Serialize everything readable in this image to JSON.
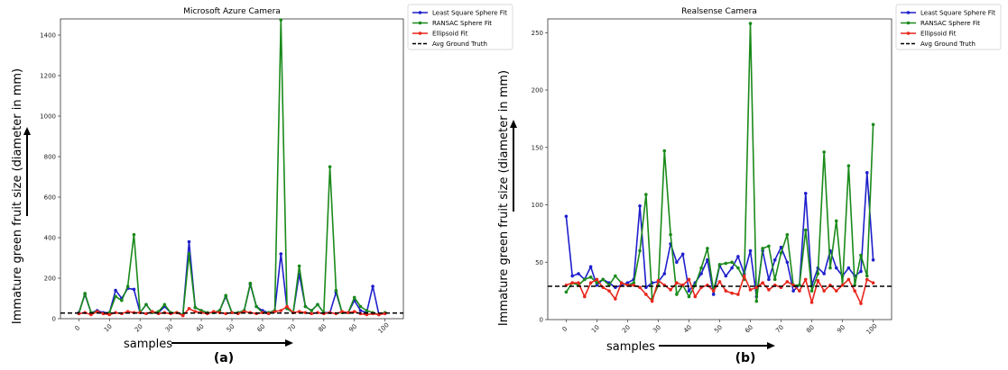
{
  "figure": {
    "ylabel": "Immature green fruit size (diameter in mm)",
    "xlabel": "samples",
    "colors": {
      "least_square": "#1f1fcc",
      "ransac": "#1a8a1a",
      "ellipsoid": "#e8261d",
      "ground_truth": "#000000"
    }
  },
  "chart_data": [
    {
      "type": "line",
      "title": "Microsoft Azure Camera",
      "panel_label": "(a)",
      "xlim": [
        -6,
        106
      ],
      "ylim": [
        0,
        1480
      ],
      "xticks": [
        0,
        10,
        20,
        30,
        40,
        50,
        60,
        70,
        80,
        90,
        100
      ],
      "yticks": [
        0,
        200,
        400,
        600,
        800,
        1000,
        1200,
        1400
      ],
      "legend_position": "outside-top-right",
      "x": [
        0,
        2,
        4,
        6,
        8,
        10,
        12,
        14,
        16,
        18,
        20,
        22,
        24,
        26,
        28,
        30,
        32,
        34,
        36,
        38,
        40,
        42,
        44,
        46,
        48,
        50,
        52,
        54,
        56,
        58,
        60,
        62,
        64,
        66,
        68,
        70,
        72,
        74,
        76,
        78,
        80,
        82,
        84,
        86,
        88,
        90,
        92,
        94,
        96,
        98,
        100
      ],
      "series": [
        {
          "name": "Least Square Sphere Fit",
          "style": "solid",
          "marker": true,
          "color_key": "least_square",
          "values": [
            30,
            120,
            30,
            40,
            30,
            30,
            140,
            100,
            150,
            145,
            30,
            70,
            30,
            30,
            60,
            30,
            30,
            20,
            380,
            55,
            40,
            30,
            30,
            40,
            110,
            30,
            30,
            40,
            170,
            60,
            40,
            30,
            40,
            320,
            50,
            30,
            220,
            60,
            40,
            70,
            30,
            30,
            130,
            30,
            30,
            90,
            40,
            30,
            160,
            20,
            30
          ]
        },
        {
          "name": "RANSAC Sphere Fit",
          "style": "solid",
          "marker": true,
          "color_key": "ransac",
          "values": [
            25,
            125,
            30,
            35,
            25,
            30,
            110,
            90,
            160,
            415,
            30,
            70,
            30,
            35,
            70,
            30,
            30,
            20,
            320,
            55,
            40,
            30,
            30,
            40,
            115,
            30,
            30,
            40,
            175,
            60,
            30,
            30,
            40,
            1475,
            50,
            30,
            260,
            60,
            40,
            70,
            30,
            750,
            140,
            30,
            30,
            105,
            60,
            40,
            30,
            20,
            30
          ]
        },
        {
          "name": "Ellipsoid Fit",
          "style": "solid",
          "marker": true,
          "color_key": "ellipsoid",
          "values": [
            25,
            30,
            20,
            35,
            25,
            20,
            30,
            25,
            35,
            30,
            30,
            25,
            35,
            25,
            30,
            25,
            30,
            15,
            50,
            35,
            30,
            25,
            35,
            30,
            25,
            30,
            25,
            35,
            30,
            25,
            30,
            25,
            35,
            40,
            60,
            30,
            35,
            30,
            25,
            30,
            25,
            30,
            25,
            35,
            30,
            35,
            25,
            20,
            25,
            20,
            25
          ]
        },
        {
          "name": "Avg Ground Truth",
          "style": "dashed",
          "marker": false,
          "color_key": "ground_truth",
          "constant": 28
        }
      ]
    },
    {
      "type": "line",
      "title": "Realsense Camera",
      "panel_label": "(b)",
      "xlim": [
        -6,
        106
      ],
      "ylim": [
        0,
        262
      ],
      "xticks": [
        0,
        10,
        20,
        30,
        40,
        50,
        60,
        70,
        80,
        90,
        100
      ],
      "yticks": [
        0,
        50,
        100,
        150,
        200,
        250
      ],
      "legend_position": "outside-top-right",
      "x": [
        0,
        2,
        4,
        6,
        8,
        10,
        12,
        14,
        16,
        18,
        20,
        22,
        24,
        26,
        28,
        30,
        32,
        34,
        36,
        38,
        40,
        42,
        44,
        46,
        48,
        50,
        52,
        54,
        56,
        58,
        60,
        62,
        64,
        66,
        68,
        70,
        72,
        74,
        76,
        78,
        80,
        82,
        84,
        86,
        88,
        90,
        92,
        94,
        96,
        98,
        100
      ],
      "series": [
        {
          "name": "Least Square Sphere Fit",
          "style": "solid",
          "marker": true,
          "color_key": "least_square",
          "values": [
            90,
            38,
            40,
            35,
            46,
            30,
            35,
            32,
            28,
            30,
            32,
            35,
            99,
            28,
            32,
            33,
            40,
            66,
            50,
            57,
            25,
            32,
            40,
            52,
            22,
            47,
            38,
            45,
            55,
            40,
            60,
            20,
            60,
            35,
            52,
            63,
            50,
            25,
            30,
            110,
            30,
            45,
            40,
            60,
            45,
            38,
            45,
            38,
            42,
            128,
            52
          ]
        },
        {
          "name": "RANSAC Sphere Fit",
          "style": "solid",
          "marker": true,
          "color_key": "ransac",
          "values": [
            24,
            32,
            30,
            35,
            37,
            32,
            35,
            30,
            38,
            32,
            30,
            32,
            60,
            109,
            18,
            30,
            147,
            74,
            22,
            30,
            20,
            30,
            45,
            62,
            25,
            48,
            49,
            50,
            45,
            35,
            258,
            16,
            62,
            64,
            35,
            58,
            74,
            30,
            30,
            78,
            25,
            40,
            146,
            45,
            86,
            30,
            134,
            30,
            56,
            38,
            170
          ]
        },
        {
          "name": "Ellipsoid Fit",
          "style": "solid",
          "marker": true,
          "color_key": "ellipsoid",
          "values": [
            30,
            32,
            32,
            20,
            32,
            35,
            28,
            25,
            18,
            32,
            30,
            30,
            28,
            22,
            16,
            34,
            30,
            26,
            32,
            30,
            35,
            20,
            28,
            30,
            25,
            33,
            25,
            23,
            22,
            38,
            26,
            28,
            32,
            26,
            30,
            28,
            33,
            30,
            25,
            35,
            15,
            34,
            25,
            30,
            25,
            30,
            35,
            25,
            14,
            35,
            32
          ]
        },
        {
          "name": "Avg Ground Truth",
          "style": "dashed",
          "marker": false,
          "color_key": "ground_truth",
          "constant": 29
        }
      ]
    }
  ]
}
